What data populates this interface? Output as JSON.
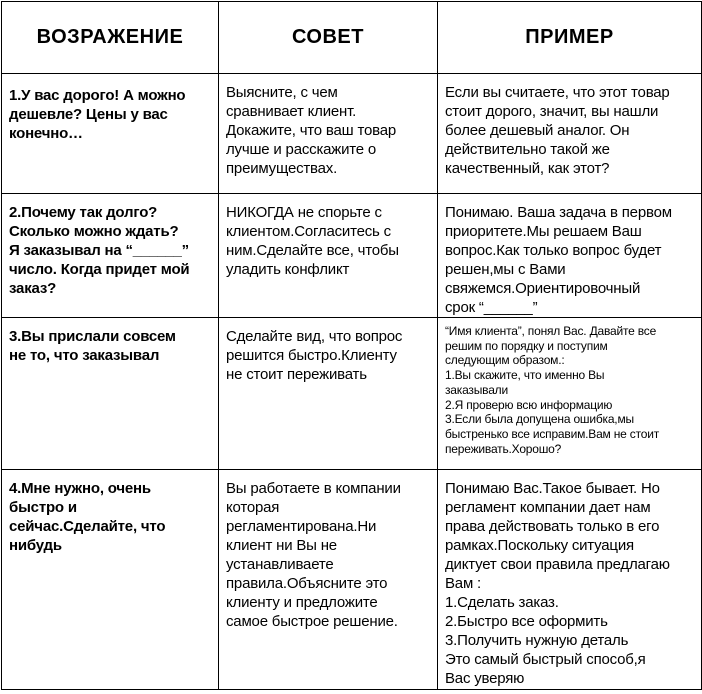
{
  "headers": [
    "ВОЗРАЖЕНИЕ",
    "СОВЕТ",
    "ПРИМЕР"
  ],
  "rows": [
    {
      "objection": " 1.У вас дорого! А можно\nдешевле? Цены у вас\nконечно…",
      "advice": "Выясните, с чем\nсравнивает клиент.\nДокажите, что ваш товар\nлучше и расскажите о\nпреимуществах.",
      "example": "Если вы считаете, что этот товар\nстоит дорого, значит, вы нашли\nболее дешевый аналог. Он\nдействительно такой же\nкачественный, как этот?"
    },
    {
      "objection": "2.Почему так долго?\nСколько можно ждать?\nЯ заказывал на “______”\nчисло. Когда придет мой\nзаказ?",
      "advice": "НИКОГДА не спорьте с\nклиентом.Согласитесь с\nним.Сделайте все, чтобы\nуладить конфликт",
      "example": "Понимаю. Ваша задача в первом\nприоритете.Мы решаем Ваш\nвопрос.Как только вопрос будет\nрешен,мы с Вами\nсвяжемся.Ориентировочный\nсрок “______”"
    },
    {
      "objection": "3.Вы прислали совсем\nне то, что заказывал",
      "advice": "Сделайте вид, что вопрос\nрешится быстро.Клиенту\nне стоит переживать",
      "example": "“Имя клиента”, понял Вас. Давайте все\nрешим по порядку и поступим\nследующим образом.:\n1.Вы скажите, что именно Вы\nзаказывали\n2.Я проверю всю информацию\n3.Если была допущена ошибка,мы\nбыстренько все исправим.Вам не стоит\nпереживать.Хорошо?"
    },
    {
      "objection": "4.Мне нужно, очень\nбыстро и\nсейчас.Сделайте, что\nнибудь",
      "advice": "Вы работаете в компании\nкоторая\nрегламентирована.Ни\nклиент ни Вы не\nустанавливаете\nправила.Объясните это\nклиенту и предложите\nсамое быстрое решение.",
      "example": "Понимаю Вас.Такое бывает. Но\nрегламент компании дает нам\nправа действовать только в его\nрамках.Поскольку ситуация\nдиктует свои правила предлагаю\nВам :\n1.Сделать заказ.\n2.Быстро все оформить\n3.Получить нужную деталь\nЭто самый быстрый способ,я\nВас уверяю"
    }
  ]
}
